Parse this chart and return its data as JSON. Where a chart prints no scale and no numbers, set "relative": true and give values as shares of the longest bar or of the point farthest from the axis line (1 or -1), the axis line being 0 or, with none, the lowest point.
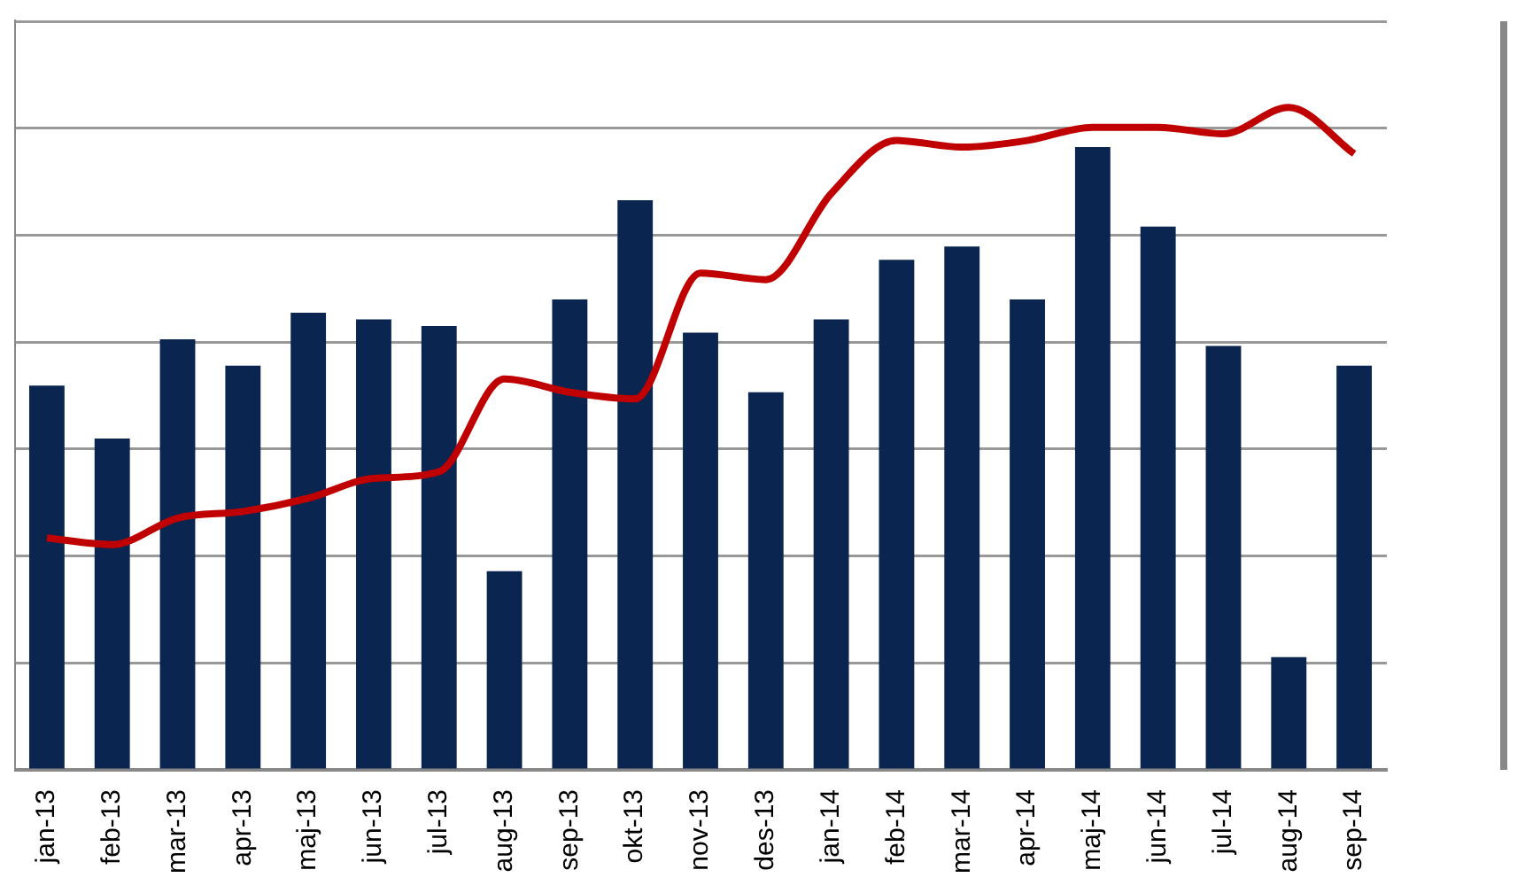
{
  "chart_data": {
    "type": "bar",
    "relative": true,
    "grid": "y",
    "legend": false,
    "categories": [
      "jan-13",
      "feb-13",
      "mar-13",
      "apr-13",
      "maj-13",
      "jun-13",
      "jul-13",
      "aug-13",
      "sep-13",
      "okt-13",
      "nov-13",
      "des-13",
      "jan-14",
      "feb-14",
      "mar-14",
      "apr-14",
      "maj-14",
      "jun-14",
      "jul-14",
      "aug-14",
      "sep-14"
    ],
    "series": [
      {
        "color": "#0a2550",
        "values": [
          0.58,
          0.5,
          0.65,
          0.61,
          0.69,
          0.68,
          0.67,
          0.3,
          0.71,
          0.86,
          0.66,
          0.57,
          0.68,
          0.77,
          0.79,
          0.71,
          0.94,
          0.82,
          0.64,
          0.17,
          0.61
        ]
      },
      {
        "type": "line",
        "color": "#c00000",
        "values": [
          0.35,
          0.34,
          0.38,
          0.39,
          0.41,
          0.44,
          0.45,
          0.59,
          0.57,
          0.56,
          0.75,
          0.74,
          0.87,
          0.95,
          0.94,
          0.95,
          0.97,
          0.97,
          0.96,
          1,
          0.93
        ]
      }
    ]
  }
}
